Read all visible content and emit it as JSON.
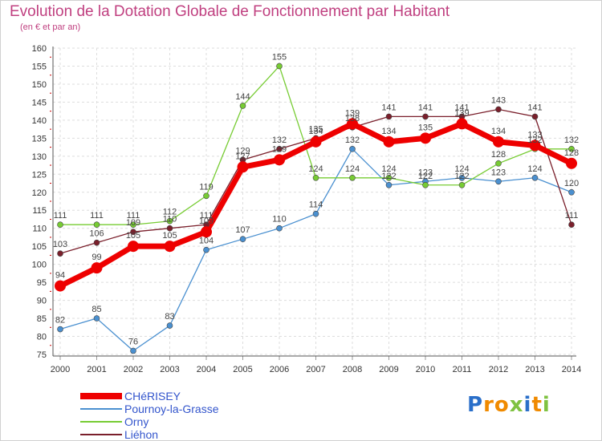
{
  "title": "Evolution de la Dotation Globale de Fonctionnement par Habitant",
  "subtitle": "(en € et par an)",
  "logo": "Proxiti",
  "chart_data": {
    "type": "line",
    "title": "Evolution de la Dotation Globale de Fonctionnement par Habitant",
    "ylabel": "(en € et par an)",
    "xlabel": "",
    "ylim": [
      75,
      160
    ],
    "yticks": [
      75,
      80,
      85,
      90,
      95,
      100,
      105,
      110,
      115,
      120,
      125,
      130,
      135,
      140,
      145,
      150,
      155,
      160
    ],
    "x": [
      "2000",
      "2001",
      "2002",
      "2003",
      "2004",
      "2005",
      "2006",
      "2007",
      "2008",
      "2009",
      "2010",
      "2011",
      "2012",
      "2013",
      "2014"
    ],
    "legend_position": "bottom-left",
    "series": [
      {
        "name": "Pournoy-la-Grasse",
        "color": "#4a90d0",
        "values": [
          82,
          85,
          76,
          83,
          104,
          107,
          110,
          114,
          132,
          122,
          123,
          124,
          123,
          124,
          120
        ]
      },
      {
        "name": "Orny",
        "color": "#77cc33",
        "values": [
          111,
          111,
          111,
          112,
          119,
          144,
          155,
          124,
          124,
          124,
          122,
          122,
          128,
          132,
          132
        ]
      },
      {
        "name": "Liéhon",
        "color": "#7a1f2b",
        "values": [
          103,
          106,
          109,
          110,
          111,
          129,
          132,
          135,
          138,
          141,
          141,
          141,
          143,
          141,
          111
        ]
      },
      {
        "name": "CHéRISEY",
        "color": "#ee0000",
        "values": [
          94,
          99,
          105,
          105,
          109,
          127,
          129,
          134,
          139,
          134,
          135,
          139,
          134,
          133,
          128
        ]
      }
    ]
  }
}
